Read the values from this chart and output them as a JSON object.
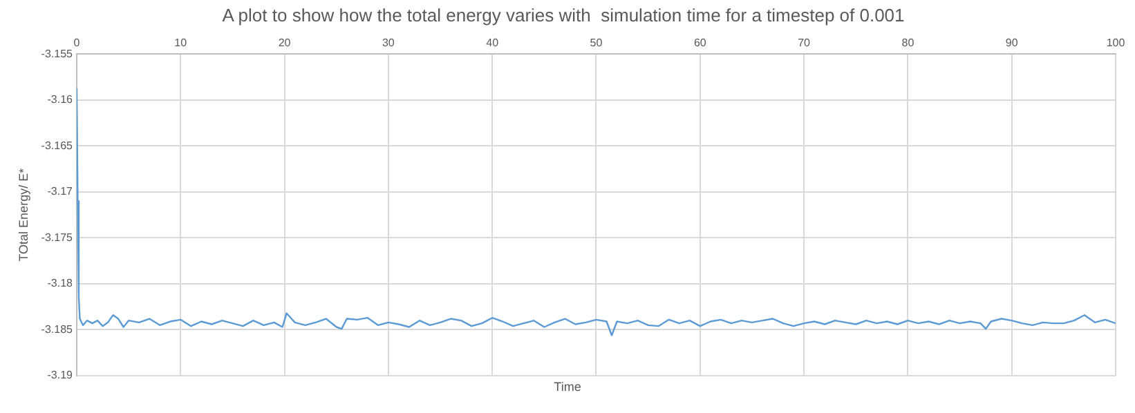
{
  "chart_data": {
    "type": "line",
    "title": "A plot to show how the total energy varies with  simulation time for a timestep of 0.001",
    "xlabel": "Time",
    "ylabel": "TOtal Energy/ E*",
    "x": [
      0,
      0.1,
      0.2,
      0.3,
      0.6,
      1,
      1.5,
      2,
      2.5,
      3,
      3.5,
      4,
      4.5,
      5,
      6,
      7,
      8,
      9,
      10,
      11,
      12,
      13,
      14,
      15,
      16,
      17,
      18,
      19,
      19.8,
      20.2,
      21,
      22,
      23,
      24,
      25,
      25.5,
      26,
      27,
      28,
      29,
      30,
      31,
      32,
      33,
      34,
      35,
      36,
      37,
      38,
      39,
      40,
      41,
      42,
      43,
      44,
      45,
      46,
      47,
      48,
      49,
      50,
      51,
      51.5,
      52,
      53,
      54,
      55,
      56,
      57,
      58,
      59,
      60,
      61,
      62,
      63,
      64,
      65,
      66,
      67,
      68,
      69,
      70,
      71,
      72,
      73,
      74,
      75,
      76,
      77,
      78,
      79,
      80,
      81,
      82,
      83,
      84,
      85,
      86,
      87,
      87.5,
      88,
      89,
      90,
      91,
      92,
      93,
      94,
      95,
      96,
      97,
      98,
      99,
      100
    ],
    "series": [
      {
        "color": "#5b9bd5",
        "values": [
          -3.1587,
          -3.171,
          -3.1815,
          -3.1838,
          -3.1845,
          -3.184,
          -3.1843,
          -3.184,
          -3.1846,
          -3.1842,
          -3.1834,
          -3.1838,
          -3.1847,
          -3.184,
          -3.1842,
          -3.1838,
          -3.1845,
          -3.1841,
          -3.1839,
          -3.1846,
          -3.1841,
          -3.1844,
          -3.184,
          -3.1843,
          -3.1846,
          -3.184,
          -3.1845,
          -3.1842,
          -3.1847,
          -3.1832,
          -3.1842,
          -3.1845,
          -3.1842,
          -3.1838,
          -3.1847,
          -3.1849,
          -3.1838,
          -3.1839,
          -3.1837,
          -3.1845,
          -3.1842,
          -3.1844,
          -3.1847,
          -3.184,
          -3.1845,
          -3.1842,
          -3.1838,
          -3.184,
          -3.1846,
          -3.1843,
          -3.1837,
          -3.1841,
          -3.1846,
          -3.1843,
          -3.184,
          -3.1847,
          -3.1842,
          -3.1838,
          -3.1844,
          -3.1842,
          -3.1839,
          -3.1841,
          -3.1856,
          -3.1841,
          -3.1843,
          -3.184,
          -3.1845,
          -3.1846,
          -3.1839,
          -3.1843,
          -3.184,
          -3.1846,
          -3.1841,
          -3.1839,
          -3.1843,
          -3.184,
          -3.1842,
          -3.184,
          -3.1838,
          -3.1843,
          -3.1846,
          -3.1843,
          -3.1841,
          -3.1844,
          -3.184,
          -3.1842,
          -3.1844,
          -3.184,
          -3.1843,
          -3.1841,
          -3.1844,
          -3.184,
          -3.1843,
          -3.1841,
          -3.1844,
          -3.184,
          -3.1843,
          -3.1841,
          -3.1843,
          -3.1849,
          -3.1841,
          -3.1838,
          -3.184,
          -3.1843,
          -3.1845,
          -3.1842,
          -3.1843,
          -3.1843,
          -3.184,
          -3.1834,
          -3.1842,
          -3.1839,
          -3.1843
        ]
      }
    ],
    "xlim": [
      0,
      100
    ],
    "xticks": [
      0,
      10,
      20,
      30,
      40,
      50,
      60,
      70,
      80,
      90,
      100
    ],
    "ylim": [
      -3.19,
      -3.155
    ],
    "yticks": [
      -3.19,
      -3.185,
      -3.18,
      -3.175,
      -3.17,
      -3.165,
      -3.16,
      -3.155
    ],
    "grid": true,
    "legend": false,
    "marker": "none",
    "line_style": "solid"
  }
}
